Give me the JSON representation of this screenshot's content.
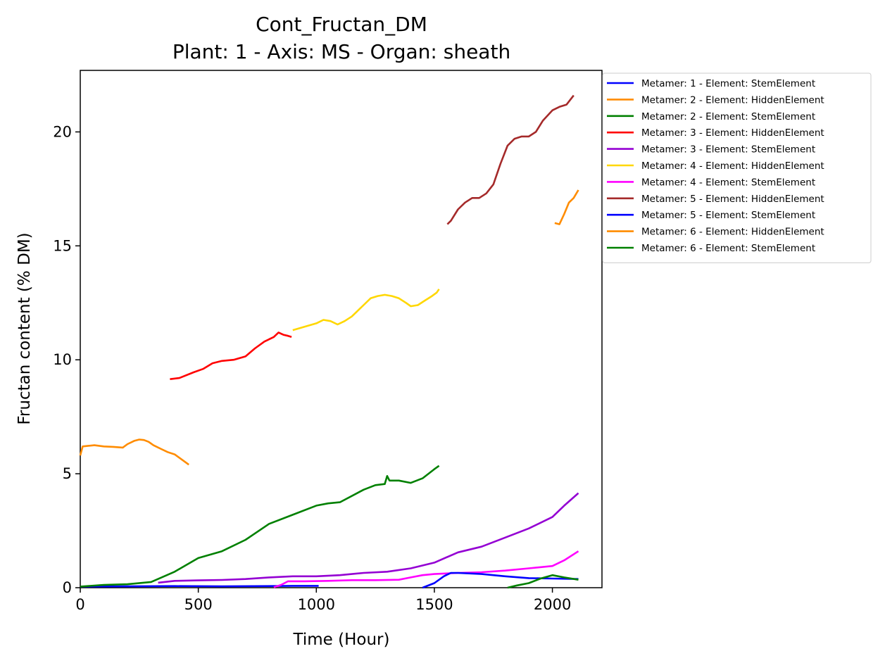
{
  "chart_data": {
    "type": "line",
    "title": "Cont_Fructan_DM",
    "subtitle": "Plant: 1 - Axis: MS - Organ: sheath",
    "xlabel": "Time (Hour)",
    "ylabel": "Fructan content (% DM)",
    "xlim": [
      0,
      2210
    ],
    "ylim": [
      0,
      22.7
    ],
    "xticks": [
      0,
      500,
      1000,
      1500,
      2000
    ],
    "yticks": [
      0,
      5,
      10,
      15,
      20
    ],
    "grid": false,
    "legend_position": "outside-right-top",
    "series": [
      {
        "name": "Metamer: 1 - Element: StemElement",
        "color": "#0000ff",
        "x": [
          0,
          200,
          400,
          600,
          800,
          900,
          1000,
          1010
        ],
        "y": [
          0.05,
          0.06,
          0.07,
          0.06,
          0.07,
          0.08,
          0.08,
          0.08
        ]
      },
      {
        "name": "Metamer: 2 - Element: HiddenElement",
        "color": "#ff8c00",
        "x": [
          0,
          10,
          30,
          60,
          100,
          140,
          180,
          200,
          230,
          250,
          270,
          290,
          310,
          340,
          370,
          400,
          420,
          440,
          460
        ],
        "y": [
          5.8,
          6.2,
          6.22,
          6.25,
          6.2,
          6.18,
          6.15,
          6.3,
          6.45,
          6.5,
          6.48,
          6.4,
          6.25,
          6.1,
          5.95,
          5.85,
          5.7,
          5.55,
          5.4
        ]
      },
      {
        "name": "Metamer: 2 - Element: StemElement",
        "color": "#008000",
        "x": [
          0,
          100,
          200,
          300,
          400,
          500,
          600,
          700,
          800,
          900,
          1000,
          1050,
          1100,
          1200,
          1250,
          1290,
          1300,
          1310,
          1350,
          1400,
          1450,
          1500,
          1520
        ],
        "y": [
          0.05,
          0.12,
          0.15,
          0.25,
          0.7,
          1.3,
          1.6,
          2.1,
          2.8,
          3.2,
          3.6,
          3.7,
          3.75,
          4.3,
          4.5,
          4.55,
          4.9,
          4.7,
          4.7,
          4.6,
          4.8,
          5.2,
          5.35
        ]
      },
      {
        "name": "Metamer: 3 - Element: HiddenElement",
        "color": "#ff0000",
        "x": [
          380,
          420,
          480,
          520,
          560,
          600,
          650,
          700,
          740,
          780,
          820,
          840,
          860,
          880,
          895
        ],
        "y": [
          9.15,
          9.2,
          9.45,
          9.6,
          9.85,
          9.95,
          10.0,
          10.15,
          10.5,
          10.8,
          11.0,
          11.2,
          11.1,
          11.05,
          11.0
        ]
      },
      {
        "name": "Metamer: 3 - Element: StemElement",
        "color": "#9400d3",
        "x": [
          330,
          400,
          500,
          600,
          700,
          800,
          900,
          1000,
          1100,
          1200,
          1300,
          1400,
          1500,
          1600,
          1700,
          1800,
          1900,
          2000,
          2050,
          2110
        ],
        "y": [
          0.22,
          0.3,
          0.32,
          0.34,
          0.38,
          0.45,
          0.5,
          0.5,
          0.55,
          0.65,
          0.7,
          0.85,
          1.1,
          1.55,
          1.8,
          2.2,
          2.6,
          3.1,
          3.6,
          4.15
        ]
      },
      {
        "name": "Metamer: 4 - Element: HiddenElement",
        "color": "#ffd700",
        "x": [
          900,
          950,
          1000,
          1030,
          1060,
          1090,
          1120,
          1150,
          1200,
          1230,
          1260,
          1290,
          1320,
          1350,
          1380,
          1400,
          1430,
          1460,
          1490,
          1510,
          1520
        ],
        "y": [
          11.3,
          11.45,
          11.6,
          11.75,
          11.7,
          11.55,
          11.7,
          11.9,
          12.4,
          12.7,
          12.8,
          12.85,
          12.8,
          12.7,
          12.5,
          12.35,
          12.4,
          12.6,
          12.8,
          12.95,
          13.1
        ]
      },
      {
        "name": "Metamer: 4 - Element: StemElement",
        "color": "#ff00ff",
        "x": [
          820,
          850,
          880,
          950,
          1050,
          1150,
          1250,
          1350,
          1400,
          1450,
          1500,
          1600,
          1700,
          1800,
          1900,
          2000,
          2050,
          2110
        ],
        "y": [
          0.02,
          0.12,
          0.28,
          0.28,
          0.3,
          0.33,
          0.33,
          0.35,
          0.45,
          0.55,
          0.6,
          0.65,
          0.68,
          0.75,
          0.85,
          0.95,
          1.2,
          1.6
        ]
      },
      {
        "name": "Metamer: 5 - Element: HiddenElement",
        "color": "#a52a2a",
        "x": [
          1555,
          1570,
          1600,
          1630,
          1660,
          1690,
          1720,
          1750,
          1780,
          1810,
          1840,
          1870,
          1900,
          1930,
          1960,
          2000,
          2030,
          2060,
          2090
        ],
        "y": [
          15.95,
          16.1,
          16.6,
          16.9,
          17.1,
          17.1,
          17.3,
          17.7,
          18.6,
          19.4,
          19.7,
          19.8,
          19.8,
          20.0,
          20.5,
          20.95,
          21.1,
          21.2,
          21.6
        ]
      },
      {
        "name": "Metamer: 5 - Element: StemElement",
        "color": "#0000ff",
        "x": [
          1450,
          1500,
          1540,
          1570,
          1600,
          1700,
          1800,
          1900,
          2000,
          2110
        ],
        "y": [
          0.0,
          0.2,
          0.5,
          0.65,
          0.65,
          0.6,
          0.5,
          0.42,
          0.4,
          0.38
        ]
      },
      {
        "name": "Metamer: 6 - Element: HiddenElement",
        "color": "#ff8c00",
        "x": [
          2010,
          2030,
          2050,
          2070,
          2090,
          2110
        ],
        "y": [
          16.0,
          15.95,
          16.4,
          16.9,
          17.1,
          17.45
        ]
      },
      {
        "name": "Metamer: 6 - Element: StemElement",
        "color": "#008000",
        "x": [
          1810,
          1850,
          1900,
          1950,
          2000,
          2050,
          2110
        ],
        "y": [
          0.0,
          0.1,
          0.2,
          0.4,
          0.55,
          0.45,
          0.35
        ]
      }
    ]
  }
}
